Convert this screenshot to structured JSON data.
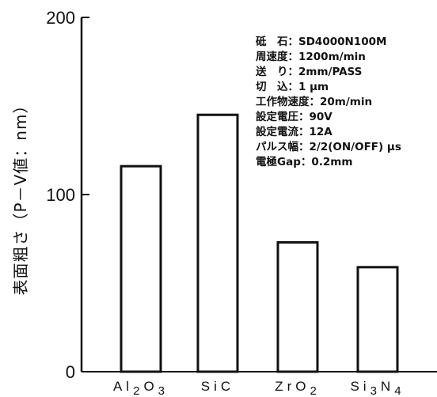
{
  "chart_data": {
    "type": "bar",
    "categories": [
      "Al2O3",
      "SiC",
      "ZrO2",
      "Si3N4"
    ],
    "category_display": [
      {
        "parts": [
          {
            "t": "Al",
            "sub": false
          },
          {
            "t": "2",
            "sub": true
          },
          {
            "t": "O",
            "sub": false
          },
          {
            "t": "3",
            "sub": true
          }
        ]
      },
      {
        "parts": [
          {
            "t": "SiC",
            "sub": false
          }
        ]
      },
      {
        "parts": [
          {
            "t": "ZrO",
            "sub": false
          },
          {
            "t": "2",
            "sub": true
          }
        ]
      },
      {
        "parts": [
          {
            "t": "Si",
            "sub": false
          },
          {
            "t": "3",
            "sub": true
          },
          {
            "t": "N",
            "sub": false
          },
          {
            "t": "4",
            "sub": true
          }
        ]
      }
    ],
    "values": [
      116,
      145,
      73,
      59
    ],
    "ylabel": "表面粗さ（P－V値：nm）",
    "xlabel": "",
    "ylim": [
      0,
      200
    ],
    "yticks": [
      0,
      100,
      200
    ],
    "grid": false,
    "annotations": [
      "砥　石：SD4000N100M",
      "周速度：1200m/min",
      "送　り：2mm/PASS",
      "切　込：1 μm",
      "工作物速度：20m/min",
      "設定電圧：90V",
      "設定電流：12A",
      "パルス幅：2/2(ON/OFF) μs",
      "電極Gap：0.2mm"
    ],
    "colors": {
      "bar_fill": "#ffffff",
      "bar_stroke": "#111111",
      "axis": "#111111"
    }
  }
}
